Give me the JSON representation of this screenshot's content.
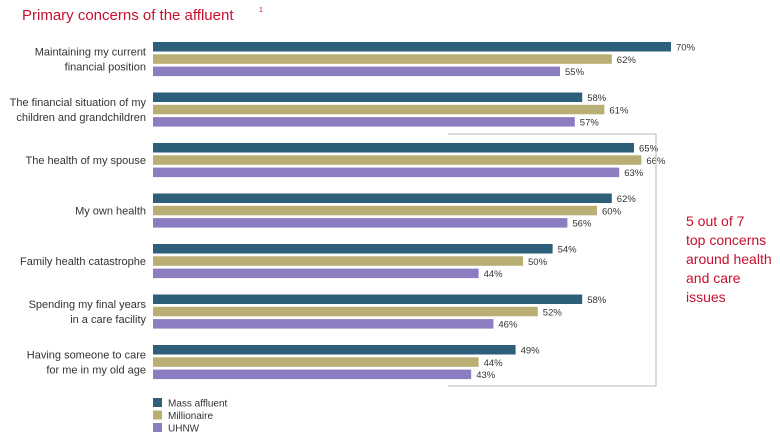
{
  "title": "Primary concerns of the affluent",
  "title_footnote": "1",
  "callout_lines": [
    "5 out of 7",
    "top concerns",
    "around health",
    "and care",
    "issues"
  ],
  "colors": {
    "mass_affluent": "#2d5f7a",
    "millionaire": "#b9ae74",
    "uhnw": "#8c7dc0",
    "accent": "#c8102e"
  },
  "chart_data": {
    "type": "bar",
    "orientation": "horizontal",
    "title": "Primary concerns of the affluent",
    "categories": [
      [
        "Maintaining my current",
        "financial position"
      ],
      [
        "The financial situation of my",
        "children and grandchildren"
      ],
      [
        "The health of my spouse"
      ],
      [
        "My own health"
      ],
      [
        "Family health catastrophe"
      ],
      [
        "Spending my final years",
        "in a care facility"
      ],
      [
        "Having someone to care",
        "for me in my old age"
      ]
    ],
    "series": [
      {
        "name": "Mass affluent",
        "values": [
          70,
          58,
          65,
          62,
          54,
          58,
          49
        ],
        "labels": [
          "70%",
          "58%",
          "65%",
          "62%",
          "54%",
          "58%",
          "49%"
        ]
      },
      {
        "name": "Millionaire",
        "values": [
          62,
          61,
          66,
          60,
          50,
          52,
          44
        ],
        "labels": [
          "62%",
          "61%",
          "66%",
          "60%",
          "50%",
          "52%",
          "44%"
        ]
      },
      {
        "name": "UHNW",
        "values": [
          55,
          57,
          63,
          56,
          44,
          46,
          43
        ],
        "labels": [
          "55%",
          "57%",
          "63%",
          "56%",
          "44%",
          "46%",
          "43%"
        ]
      }
    ],
    "xlim": [
      0,
      70
    ],
    "legend_position": "bottom-left"
  }
}
